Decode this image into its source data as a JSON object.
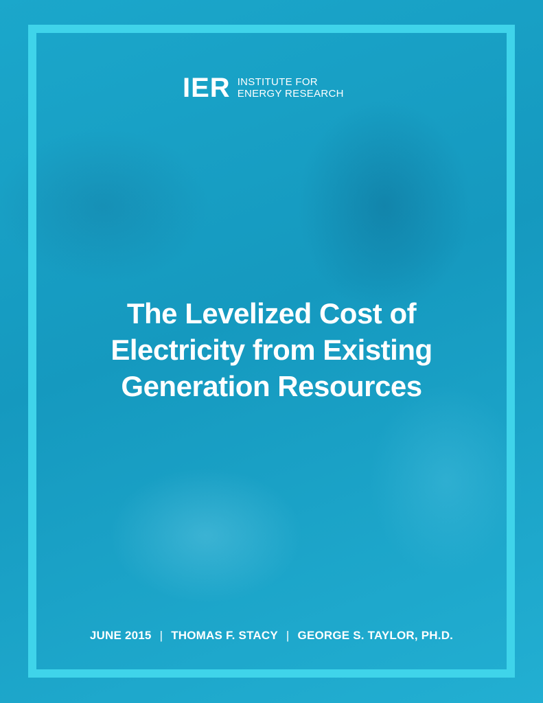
{
  "logo": {
    "mark": "IER",
    "line1": "INSTITUTE FOR",
    "line2": "ENERGY RESEARCH"
  },
  "title": {
    "line1": "The Levelized Cost of",
    "line2": "Electricity from Existing",
    "line3": "Generation Resources"
  },
  "footer": {
    "date": "JUNE 2015",
    "separator": "|",
    "author1": "THOMAS F. STACY",
    "author2": "GEORGE S. TAYLOR, PH.D."
  },
  "colors": {
    "background": "#1ba5c8",
    "frame": "#3fd4ea",
    "text": "#ffffff"
  }
}
